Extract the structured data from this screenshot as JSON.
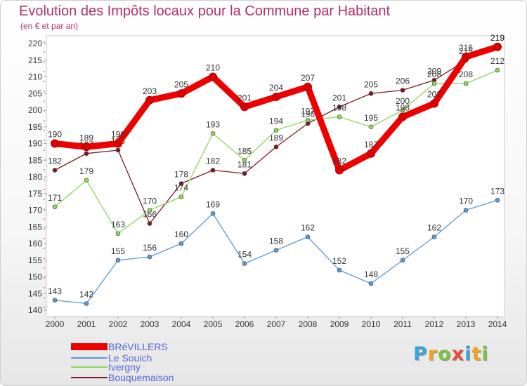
{
  "title": "Evolution des Impôts locaux pour la Commune par Habitant",
  "subtitle": "(en € et par an)",
  "chart_data": {
    "type": "line",
    "x": [
      2000,
      2001,
      2002,
      2003,
      2004,
      2005,
      2006,
      2007,
      2008,
      2009,
      2010,
      2011,
      2012,
      2013,
      2014
    ],
    "ylim": [
      140,
      220
    ],
    "yticks": [
      140,
      145,
      150,
      155,
      160,
      165,
      170,
      175,
      180,
      185,
      190,
      195,
      200,
      205,
      210,
      215,
      220
    ],
    "grid": false,
    "legend_position": "bottom-left",
    "series": [
      {
        "name": "Bouquemaison",
        "color": "#7a1a24",
        "values": [
          182,
          187,
          188,
          166,
          178,
          182,
          181,
          189,
          196,
          201,
          205,
          206,
          209,
          215,
          219
        ],
        "labels": [
          "182",
          "187",
          "188",
          "166",
          "178",
          "182",
          "181",
          "189",
          "196",
          "201",
          "205",
          "206",
          "209",
          "215",
          "219"
        ]
      },
      {
        "name": "Ivergny",
        "color": "#8fd657",
        "values": [
          171,
          179,
          163,
          170,
          174,
          193,
          185,
          194,
          197,
          198,
          195,
          200,
          208,
          208,
          212
        ],
        "labels": [
          "171",
          "179",
          "163",
          "170",
          "174",
          "193",
          "185",
          "194",
          "197",
          "198",
          "195",
          "200",
          "208",
          "208",
          "212"
        ]
      },
      {
        "name": "Le Souich",
        "color": "#5b9bd0",
        "values": [
          143,
          142,
          155,
          156,
          160,
          169,
          154,
          158,
          162,
          152,
          148,
          155,
          162,
          170,
          173
        ],
        "labels": [
          "143",
          "142",
          "155",
          "156",
          "160",
          "169",
          "154",
          "158",
          "162",
          "152",
          "148",
          "155",
          "162",
          "170",
          "173"
        ]
      },
      {
        "name": "BRéVILLERS",
        "color": "#ee0000",
        "values": [
          190,
          189,
          190,
          203,
          205,
          210,
          201,
          204,
          207,
          182,
          187,
          198,
          202,
          216,
          219
        ],
        "labels": [
          "190",
          "189",
          "190",
          "203",
          "205",
          "210",
          "201",
          "204",
          "207",
          "182",
          "187",
          "198",
          "202",
          "216",
          "219"
        ]
      }
    ]
  },
  "legend": {
    "items": [
      {
        "name": "BRéVILLERS",
        "color": "#ee0000"
      },
      {
        "name": "Le Souich",
        "color": "#5b9bd0"
      },
      {
        "name": "Ivergny",
        "color": "#8fd657"
      },
      {
        "name": "Bouquemaison",
        "color": "#7a1a24"
      }
    ]
  },
  "logo": {
    "text": "Proxiti",
    "letters": [
      {
        "ch": "P",
        "color": "#3ba3dc"
      },
      {
        "ch": "r",
        "color": "#f4a11d"
      },
      {
        "ch": "o",
        "color": "#7cc142"
      },
      {
        "ch": "x",
        "color": "#e84c3d"
      },
      {
        "ch": "i",
        "color": "#3ba3dc"
      },
      {
        "ch": "t",
        "color": "#f4a11d"
      },
      {
        "ch": "i",
        "color": "#7cc142"
      }
    ]
  }
}
